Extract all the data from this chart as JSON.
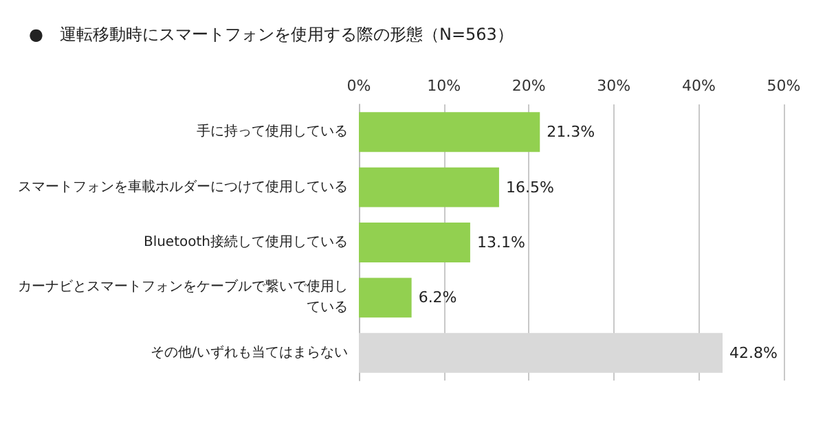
{
  "chart_data": {
    "type": "bar",
    "orientation": "horizontal",
    "title": "●　運転移動時にスマートフォンを使用する際の形態（N=563）",
    "categories": [
      "手に持って使用している",
      "スマートフォンを車載ホルダーにつけて使用している",
      "Bluetooth接続して使用している",
      "カーナビとスマートフォンをケーブルで繋いで使用している",
      "その他/いずれも当てはまらない"
    ],
    "values": [
      21.3,
      16.5,
      13.1,
      6.2,
      42.8
    ],
    "colors": [
      "#92d050",
      "#92d050",
      "#92d050",
      "#92d050",
      "#d9d9d9"
    ],
    "value_labels": [
      "21.3%",
      "16.5%",
      "13.1%",
      "6.2%",
      "42.8%"
    ],
    "xlim": [
      0,
      50
    ],
    "xticks": [
      {
        "value": 0,
        "label": "0%"
      },
      {
        "value": 10,
        "label": "10%"
      },
      {
        "value": 20,
        "label": "20%"
      },
      {
        "value": 30,
        "label": "30%"
      },
      {
        "value": 40,
        "label": "40%"
      },
      {
        "value": 50,
        "label": "50%"
      }
    ],
    "grid": "x"
  }
}
